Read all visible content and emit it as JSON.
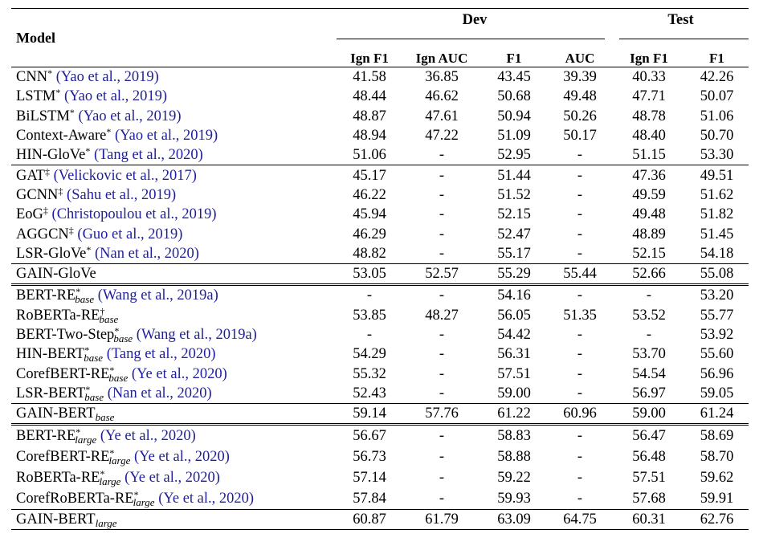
{
  "headers": {
    "model": "Model",
    "dev": "Dev",
    "test": "Test",
    "cols": [
      "Ign F1",
      "Ign AUC",
      "F1",
      "AUC",
      "Ign F1",
      "F1"
    ]
  },
  "groups": [
    {
      "rows": [
        {
          "name": "CNN",
          "sub": "",
          "mark": "*",
          "cite": "(Yao et al., 2019)",
          "vals": [
            "41.58",
            "36.85",
            "43.45",
            "39.39",
            "40.33",
            "42.26"
          ]
        },
        {
          "name": "LSTM",
          "sub": "",
          "mark": "*",
          "cite": "(Yao et al., 2019)",
          "vals": [
            "48.44",
            "46.62",
            "50.68",
            "49.48",
            "47.71",
            "50.07"
          ]
        },
        {
          "name": "BiLSTM",
          "sub": "",
          "mark": "*",
          "cite": "(Yao et al., 2019)",
          "vals": [
            "48.87",
            "47.61",
            "50.94",
            "50.26",
            "48.78",
            "51.06"
          ]
        },
        {
          "name": "Context-Aware",
          "sub": "",
          "mark": "*",
          "cite": "(Yao et al., 2019)",
          "vals": [
            "48.94",
            "47.22",
            "51.09",
            "50.17",
            "48.40",
            "50.70"
          ]
        },
        {
          "name": "HIN-GloVe",
          "sub": "",
          "mark": "*",
          "cite": "(Tang et al., 2020)",
          "vals": [
            "51.06",
            "-",
            "52.95",
            "-",
            "51.15",
            "53.30"
          ]
        }
      ]
    },
    {
      "rows": [
        {
          "name": "GAT",
          "sub": "",
          "mark": "‡",
          "cite": "(Velickovic et al., 2017)",
          "vals": [
            "45.17",
            "-",
            "51.44",
            "-",
            "47.36",
            "49.51"
          ]
        },
        {
          "name": "GCNN",
          "sub": "",
          "mark": "‡",
          "cite": "(Sahu et al., 2019)",
          "vals": [
            "46.22",
            "-",
            "51.52",
            "-",
            "49.59",
            "51.62"
          ]
        },
        {
          "name": "EoG",
          "sub": "",
          "mark": "‡",
          "cite": "(Christopoulou et al., 2019)",
          "vals": [
            "45.94",
            "-",
            "52.15",
            "-",
            "49.48",
            "51.82"
          ]
        },
        {
          "name": "AGGCN",
          "sub": "",
          "mark": "‡",
          "cite": "(Guo et al., 2019)",
          "vals": [
            "46.29",
            "-",
            "52.47",
            "-",
            "48.89",
            "51.45"
          ]
        },
        {
          "name": "LSR-GloVe",
          "sub": "",
          "mark": "*",
          "cite": "(Nan et al., 2020)",
          "vals": [
            "48.82",
            "-",
            "55.17",
            "-",
            "52.15",
            "54.18"
          ]
        }
      ]
    },
    {
      "gain": true,
      "rows": [
        {
          "name": "GAIN-GloVe",
          "sub": "",
          "mark": "",
          "cite": "",
          "vals": [
            "53.05",
            "52.57",
            "55.29",
            "55.44",
            "52.66",
            "55.08"
          ]
        }
      ]
    },
    {
      "rows": [
        {
          "name": "BERT-RE",
          "sub": "base",
          "mark": "*",
          "cite": "(Wang et al., 2019a)",
          "vals": [
            "-",
            "-",
            "54.16",
            "-",
            "-",
            "53.20"
          ]
        },
        {
          "name": "RoBERTa-RE",
          "sub": "base",
          "mark": "†",
          "cite": "",
          "vals": [
            "53.85",
            "48.27",
            "56.05",
            "51.35",
            "53.52",
            "55.77"
          ]
        },
        {
          "name": "BERT-Two-Step",
          "sub": "base",
          "mark": "*",
          "cite": "(Wang et al., 2019a)",
          "vals": [
            "-",
            "-",
            "54.42",
            "-",
            "-",
            "53.92"
          ]
        },
        {
          "name": "HIN-BERT",
          "sub": "base",
          "mark": "*",
          "cite": "(Tang et al., 2020)",
          "vals": [
            "54.29",
            "-",
            "56.31",
            "-",
            "53.70",
            "55.60"
          ]
        },
        {
          "name": "CorefBERT-RE",
          "sub": "base",
          "mark": "*",
          "cite": "(Ye et al., 2020)",
          "vals": [
            "55.32",
            "-",
            "57.51",
            "-",
            "54.54",
            "56.96"
          ]
        },
        {
          "name": "LSR-BERT",
          "sub": "base",
          "mark": "*",
          "cite": "(Nan et al., 2020)",
          "vals": [
            "52.43",
            "-",
            "59.00",
            "-",
            "56.97",
            "59.05"
          ]
        }
      ]
    },
    {
      "gain": true,
      "rows": [
        {
          "name": "GAIN-BERT",
          "sub": "base",
          "mark": "",
          "cite": "",
          "vals": [
            "59.14",
            "57.76",
            "61.22",
            "60.96",
            "59.00",
            "61.24"
          ]
        }
      ]
    },
    {
      "large": true,
      "rows": [
        {
          "name": "BERT-RE",
          "sub": "large",
          "mark": "*",
          "cite": "(Ye et al., 2020)",
          "vals": [
            "56.67",
            "-",
            "58.83",
            "-",
            "56.47",
            "58.69"
          ]
        },
        {
          "name": "CorefBERT-RE",
          "sub": "large",
          "mark": "*",
          "cite": "(Ye et al., 2020)",
          "vals": [
            "56.73",
            "-",
            "58.88",
            "-",
            "56.48",
            "58.70"
          ]
        },
        {
          "name": "RoBERTa-RE",
          "sub": "large",
          "mark": "*",
          "cite": "(Ye et al., 2020)",
          "vals": [
            "57.14",
            "-",
            "59.22",
            "-",
            "57.51",
            "59.62"
          ]
        },
        {
          "name": "CorefRoBERTa-RE",
          "sub": "large",
          "mark": "*",
          "cite": "(Ye et al., 2020)",
          "vals": [
            "57.84",
            "-",
            "59.93",
            "-",
            "57.68",
            "59.91"
          ]
        }
      ]
    },
    {
      "gain": true,
      "last": true,
      "rows": [
        {
          "name": "GAIN-BERT",
          "sub": "large",
          "mark": "",
          "cite": "",
          "vals": [
            "60.87",
            "61.79",
            "63.09",
            "64.75",
            "60.31",
            "62.76"
          ]
        }
      ]
    }
  ]
}
